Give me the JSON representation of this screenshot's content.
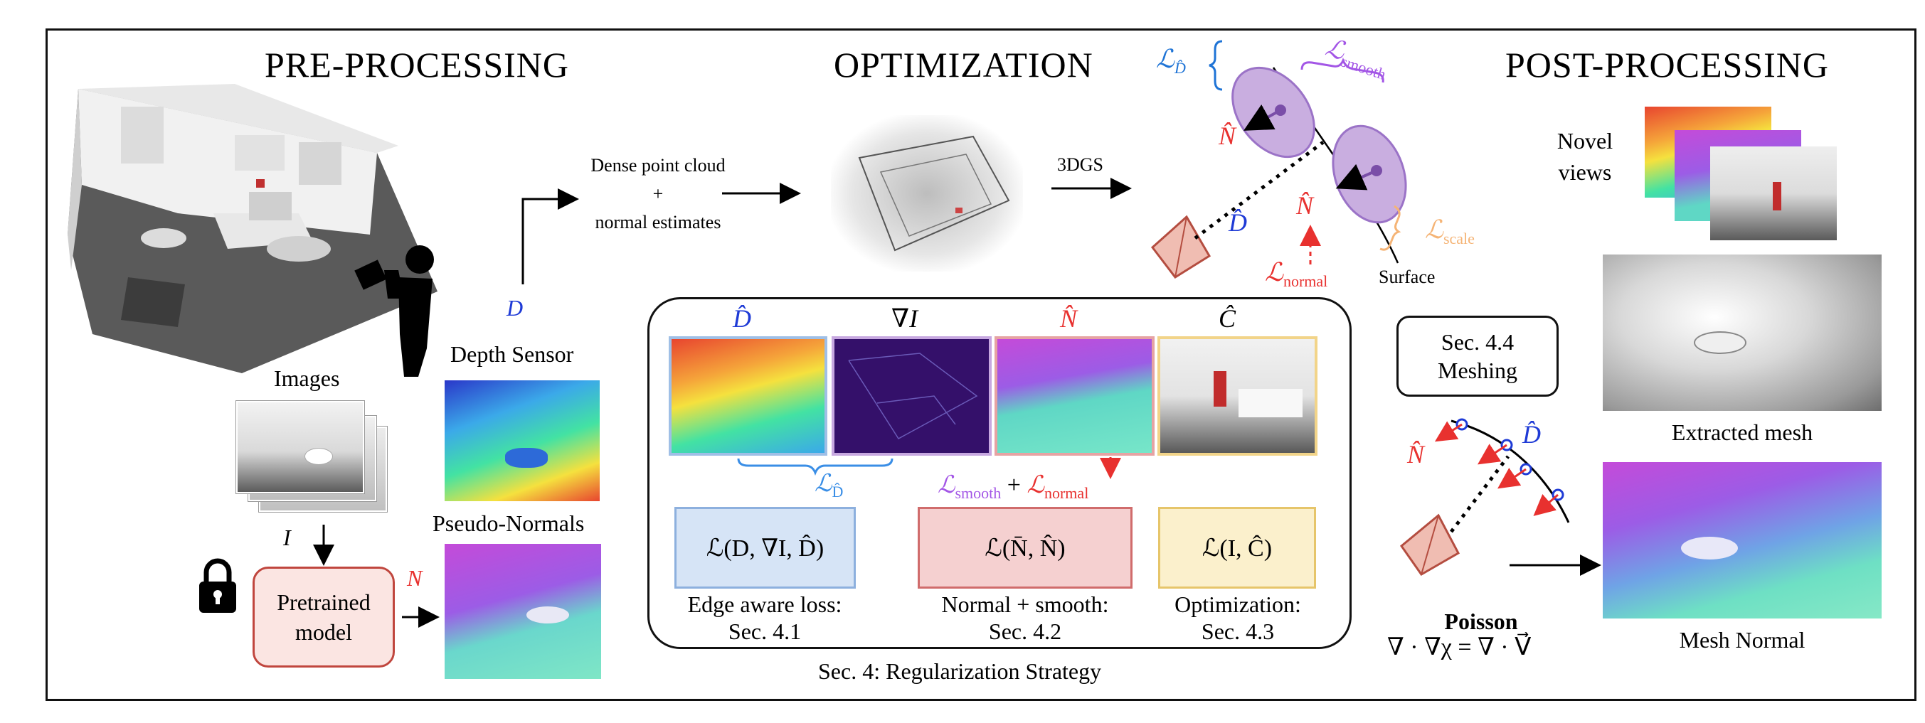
{
  "sections": {
    "pre": "PRE-PROCESSING",
    "opt": "OPTIMIZATION",
    "post": "POST-PROCESSING"
  },
  "pre": {
    "images_label": "Images",
    "I_symbol": "I",
    "pretrained": "Pretrained model",
    "N_symbol": "N",
    "depth_sensor": "Depth Sensor",
    "D_symbol": "D",
    "pseudo_normals": "Pseudo-Normals",
    "dense_cloud_line1": "Dense point cloud",
    "dense_cloud_plus": "+",
    "dense_cloud_line2": "normal estimates"
  },
  "opt": {
    "arrow_label": "3DGS",
    "surface": "Surface",
    "loss_D": "ℒ",
    "loss_D_sub": "D̂",
    "loss_smooth": "ℒ",
    "loss_smooth_sub": "smooth",
    "loss_scale": "ℒ",
    "loss_scale_sub": "scale",
    "loss_normal": "ℒ",
    "loss_normal_sub": "normal",
    "N_hat": "N̂",
    "D_hat": "D̂",
    "reg": {
      "col_D": "D̂",
      "col_grad": "∇I",
      "col_N": "N̂",
      "col_C": "Ĉ",
      "brace_loss": "ℒ",
      "brace_sub": "D̂",
      "combo_smooth": "ℒ",
      "combo_smooth_sub": "smooth",
      "combo_plus": "+",
      "combo_normal": "ℒ",
      "combo_normal_sub": "normal",
      "loss1": "ℒ(D, ∇I, D̂)",
      "loss2": "ℒ(N̄, N̂)",
      "loss3": "ℒ(I, Ĉ)",
      "cap1a": "Edge aware loss:",
      "cap1b": "Sec. 4.1",
      "cap2a": "Normal + smooth:",
      "cap2b": "Sec. 4.2",
      "cap3a": "Optimization:",
      "cap3b": "Sec. 4.3"
    },
    "caption": "Sec. 4: Regularization Strategy"
  },
  "post": {
    "novel_views": "Novel views",
    "meshing_line1": "Sec. 4.4",
    "meshing_line2": "Meshing",
    "extracted": "Extracted mesh",
    "mesh_normal": "Mesh Normal",
    "N_hat": "N̂",
    "D_hat": "D̂",
    "poisson": "Poisson",
    "poisson_eq": "∇ · ∇χ = ∇ · V⃗"
  },
  "colors": {
    "blue": "#1f3bd6",
    "light_blue": "#3a8ee6",
    "red": "#e8312f",
    "purple": "#a356e6",
    "orange": "#f5b476",
    "gaussian": "#c9aee0",
    "pink_box": "#f5d0d0",
    "blue_box": "#d6e4f6",
    "yellow_box": "#fbf0cc"
  }
}
